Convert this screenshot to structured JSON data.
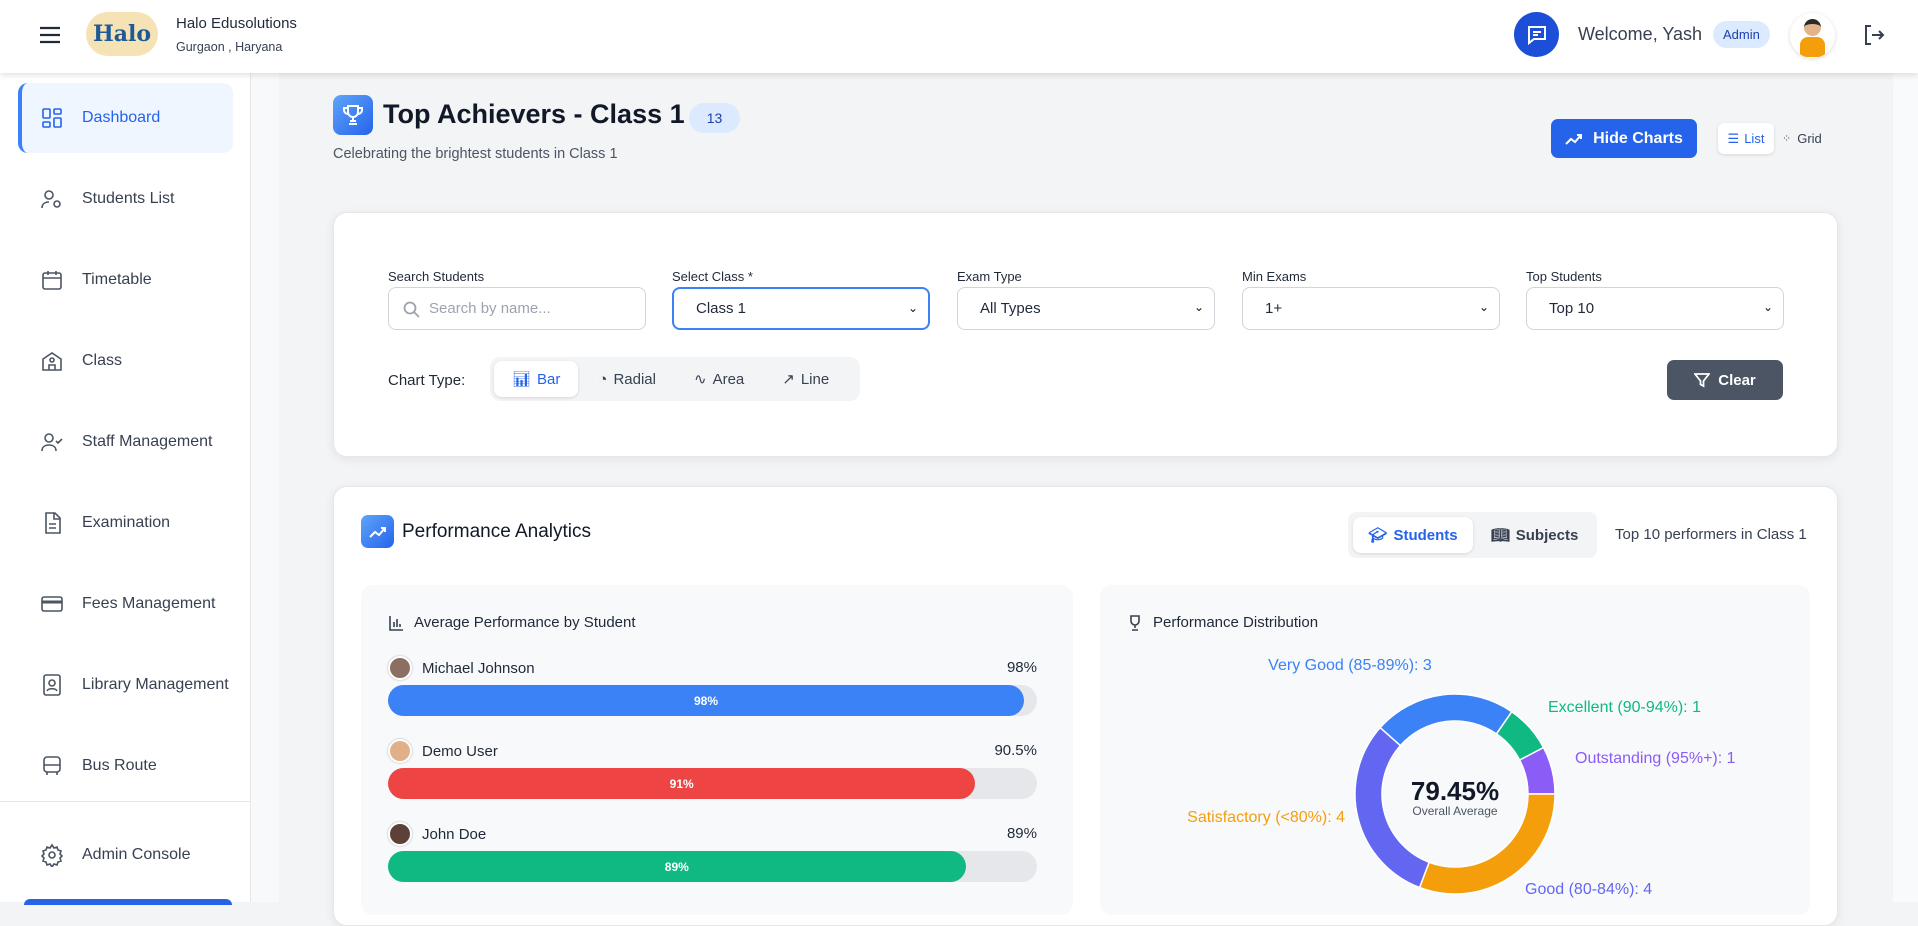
{
  "header": {
    "org_name": "Halo Edusolutions",
    "org_location": "Gurgaon , Haryana",
    "logo_text": "Halo",
    "welcome": "Welcome, Yash",
    "role_badge": "Admin"
  },
  "sidebar": {
    "items": [
      {
        "label": "Dashboard",
        "icon": "dashboard-icon",
        "active": true
      },
      {
        "label": "Students List",
        "icon": "user-cog-icon"
      },
      {
        "label": "Timetable",
        "icon": "calendar-icon"
      },
      {
        "label": "Class",
        "icon": "school-icon"
      },
      {
        "label": "Staff Management",
        "icon": "user-check-icon"
      },
      {
        "label": "Examination",
        "icon": "file-text-icon"
      },
      {
        "label": "Fees Management",
        "icon": "credit-card-icon"
      },
      {
        "label": "Library Management",
        "icon": "book-user-icon"
      },
      {
        "label": "Bus Route",
        "icon": "bus-icon"
      }
    ],
    "admin_console": "Admin Console"
  },
  "page": {
    "title": "Top Achievers - Class 1",
    "count_badge": "13",
    "subtitle": "Celebrating the brightest students in Class 1",
    "hide_charts": "Hide Charts",
    "view_list": "List",
    "view_grid": "Grid"
  },
  "filters": {
    "search_label": "Search Students",
    "search_placeholder": "Search by name...",
    "class_label": "Select Class *",
    "class_value": "Class 1",
    "exam_label": "Exam Type",
    "exam_value": "All Types",
    "min_label": "Min Exams",
    "min_value": "1+",
    "top_label": "Top Students",
    "top_value": "Top 10",
    "chart_type_label": "Chart Type:",
    "chart_types": [
      "Bar",
      "Radial",
      "Area",
      "Line"
    ],
    "chart_type_selected": "Bar",
    "clear": "Clear"
  },
  "analytics": {
    "title": "Performance Analytics",
    "tabs": [
      "Students",
      "Subjects"
    ],
    "active_tab": "Students",
    "summary": "Top 10 performers in Class 1",
    "bar_panel_title": "Average Performance by Student",
    "students": [
      {
        "name": "Michael Johnson",
        "value": 98,
        "value_label": "98%",
        "bar_label": "98%",
        "color": "#3b82f6"
      },
      {
        "name": "Demo User",
        "value": 90.5,
        "value_label": "90.5%",
        "bar_label": "91%",
        "color": "#ef4444"
      },
      {
        "name": "John Doe",
        "value": 89,
        "value_label": "89%",
        "bar_label": "89%",
        "color": "#10b981"
      }
    ],
    "donut_panel_title": "Performance Distribution",
    "center_value": "79.45%",
    "center_label": "Overall Average"
  },
  "chart_data": {
    "type": "pie",
    "subtype": "donut",
    "title": "Performance Distribution",
    "slices": [
      {
        "label": "Very Good (85-89%): 3",
        "category": "Very Good (85-89%)",
        "value": 3,
        "color": "#3b82f6"
      },
      {
        "label": "Excellent (90-94%): 1",
        "category": "Excellent (90-94%)",
        "value": 1,
        "color": "#10b981"
      },
      {
        "label": "Outstanding (95%+): 1",
        "category": "Outstanding (95%+)",
        "value": 1,
        "color": "#8b5cf6"
      },
      {
        "label": "Satisfactory (<80%): 4",
        "category": "Satisfactory (<80%)",
        "value": 4,
        "color": "#f59e0b"
      },
      {
        "label": "Good (80-84%): 4",
        "category": "Good (80-84%)",
        "value": 4,
        "color": "#6366f1"
      }
    ]
  }
}
